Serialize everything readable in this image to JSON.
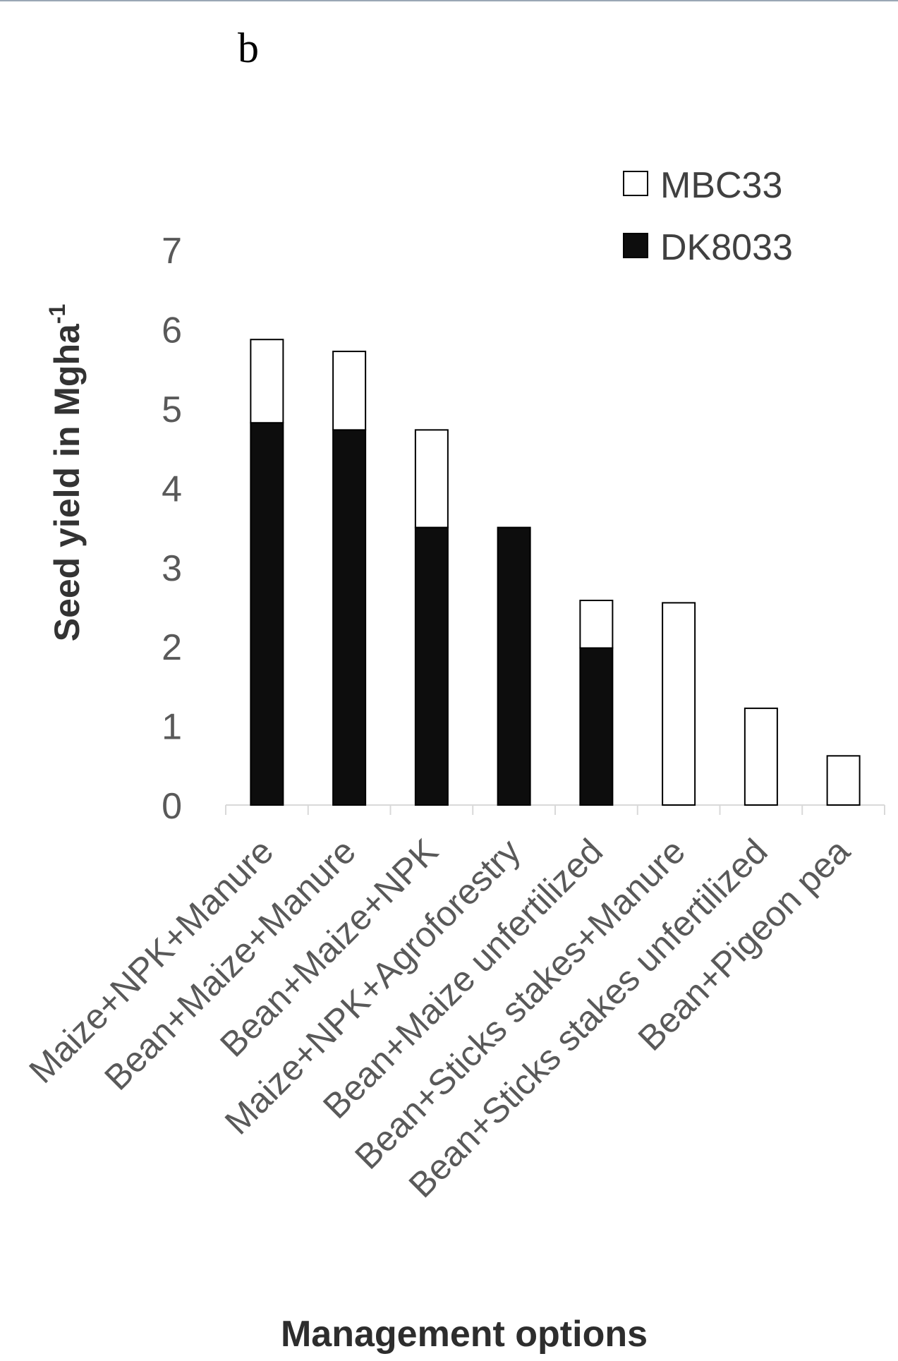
{
  "panel_label": "b",
  "chart_data": {
    "type": "bar",
    "stacked": true,
    "categories": [
      "Maize+NPK+Manure",
      "Bean+Maize+Manure",
      "Bean+Maize+NPK",
      "Maize+NPK+Agroforestry",
      "Bean+Maize unfertilized",
      "Bean+Sticks stakes+Manure",
      "Bean+Sticks stakes unfertilized",
      "Bean+Pigeon pea"
    ],
    "series": [
      {
        "name": "DK8033",
        "color": "#0d0d0d",
        "values": [
          4.82,
          4.73,
          3.5,
          3.5,
          1.98,
          0,
          0,
          0
        ]
      },
      {
        "name": "MBC33",
        "color": "#ffffff",
        "values": [
          1.05,
          0.99,
          1.23,
          0,
          0.6,
          2.55,
          1.22,
          0.62
        ]
      }
    ],
    "legend_order": [
      "MBC33",
      "DK8033"
    ],
    "legend_position": "top-right",
    "xlabel": "Management options",
    "ylabel": "Seed yield in Mgha",
    "ylabel_superscript": "-1",
    "ylim": [
      0,
      7
    ],
    "yticks": [
      "0",
      "1",
      "2",
      "3",
      "4",
      "5",
      "6",
      "7"
    ],
    "grid": false
  }
}
